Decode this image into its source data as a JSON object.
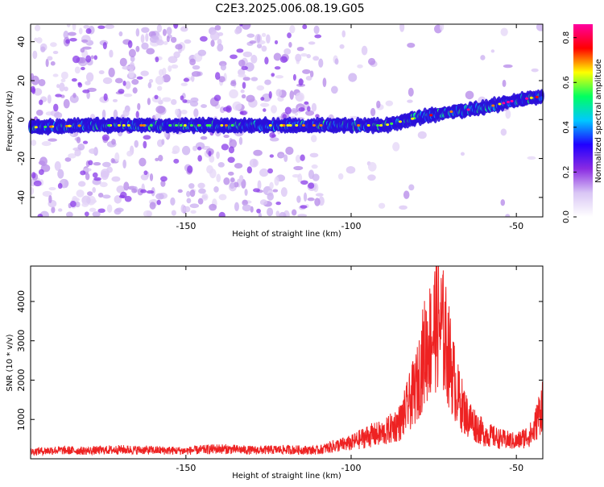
{
  "figure_title": "C2E3.2025.006.08.19.G05",
  "chart_data": [
    {
      "type": "heatmap",
      "xlabel": "Height of straight line (km)",
      "ylabel": "Frequency (Hz)",
      "xlim": [
        -197,
        -42
      ],
      "ylim": [
        -50,
        49
      ],
      "xticks": [
        -150,
        -100,
        -50
      ],
      "yticks": [
        -40,
        -20,
        0,
        20,
        40
      ],
      "colorbar": {
        "label": "Normalized spectral amplitude",
        "range": [
          0.0,
          0.86
        ],
        "ticks": [
          "0.0",
          "0.2",
          "0.4",
          "0.6",
          "0.8"
        ],
        "tick_values": [
          0.0,
          0.2,
          0.4,
          0.6,
          0.8
        ],
        "colors": [
          "#ffffff",
          "#d9c6f5",
          "#8a2be2",
          "#2000ff",
          "#00c8ff",
          "#00ff60",
          "#ffff00",
          "#ff0000",
          "#ff00a0"
        ]
      },
      "ridge": {
        "x": [
          -197,
          -180,
          -160,
          -140,
          -120,
          -110,
          -100,
          -90,
          -80,
          -70,
          -60,
          -50,
          -42
        ],
        "frequency": [
          -4,
          -3,
          -3,
          -3,
          -3,
          -3,
          -3,
          -3,
          1,
          4,
          6,
          10,
          12
        ]
      }
    },
    {
      "type": "line",
      "xlabel": "Height of straight line (km)",
      "ylabel": "SNR (10 * v/v)",
      "xlim": [
        -197,
        -42
      ],
      "ylim": [
        0,
        4900
      ],
      "xticks": [
        -150,
        -100,
        -50
      ],
      "yticks": [
        1000,
        2000,
        3000,
        4000
      ],
      "series": [
        {
          "color": "#ee2222",
          "x": [
            -197,
            -190,
            -180,
            -170,
            -160,
            -150,
            -140,
            -130,
            -120,
            -110,
            -105,
            -100,
            -95,
            -90,
            -85,
            -80,
            -78,
            -76,
            -74,
            -72,
            -70,
            -68,
            -65,
            -60,
            -55,
            -50,
            -45,
            -42
          ],
          "y": [
            250,
            300,
            280,
            320,
            300,
            280,
            350,
            300,
            320,
            300,
            450,
            550,
            800,
            900,
            1300,
            2600,
            3700,
            4200,
            4900,
            4400,
            3400,
            2300,
            1500,
            900,
            700,
            600,
            900,
            2000
          ]
        }
      ]
    }
  ]
}
